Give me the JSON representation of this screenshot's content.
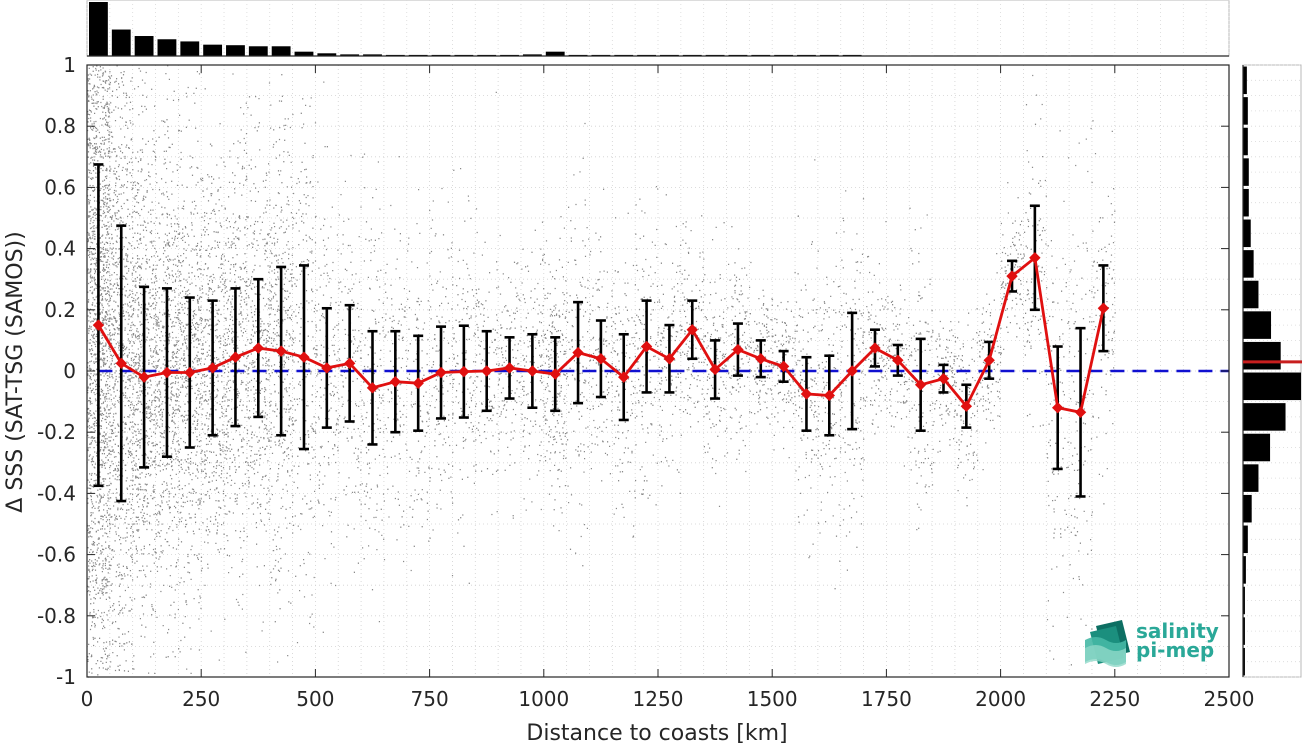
{
  "chart_data": {
    "type": "scatter",
    "xlabel": "Distance to coasts [km]",
    "ylabel": "Δ SSS (SAT-TSG (SAMOS))",
    "xlim": [
      0,
      2500
    ],
    "ylim": [
      -1,
      1
    ],
    "xticks": [
      "0",
      "250",
      "500",
      "750",
      "1000",
      "1250",
      "1500",
      "1750",
      "2000",
      "2250",
      "2500"
    ],
    "yticks": [
      "-1",
      "-0.8",
      "-0.6",
      "-0.4",
      "-0.2",
      "0",
      "0.2",
      "0.4",
      "0.6",
      "0.8",
      "1"
    ],
    "grid": "dotted",
    "reference_line": {
      "y": 0,
      "color": "#1010d0",
      "style": "dashed"
    },
    "series": [
      {
        "color": "#e01010",
        "marker": "diamond",
        "x": [
          25,
          75,
          125,
          175,
          225,
          275,
          325,
          375,
          425,
          475,
          525,
          575,
          625,
          675,
          725,
          775,
          825,
          875,
          925,
          975,
          1025,
          1075,
          1125,
          1175,
          1225,
          1275,
          1325,
          1375,
          1425,
          1475,
          1525,
          1575,
          1625,
          1675,
          1725,
          1775,
          1825,
          1875,
          1925,
          1975,
          2025,
          2075,
          2125,
          2175,
          2225
        ],
        "mean": [
          0.15,
          0.025,
          -0.02,
          -0.005,
          -0.005,
          0.01,
          0.045,
          0.075,
          0.065,
          0.045,
          0.01,
          0.025,
          -0.055,
          -0.035,
          -0.04,
          -0.005,
          -0.002,
          0.0,
          0.01,
          0.0,
          -0.01,
          0.06,
          0.04,
          -0.02,
          0.08,
          0.04,
          0.135,
          0.005,
          0.07,
          0.04,
          0.015,
          -0.075,
          -0.08,
          0.0,
          0.075,
          0.035,
          -0.045,
          -0.025,
          -0.115,
          0.035,
          0.31,
          0.37,
          -0.12,
          -0.135,
          0.205
        ],
        "std": [
          0.525,
          0.45,
          0.295,
          0.275,
          0.245,
          0.22,
          0.225,
          0.225,
          0.275,
          0.3,
          0.195,
          0.19,
          0.185,
          0.165,
          0.155,
          0.15,
          0.15,
          0.13,
          0.1,
          0.12,
          0.12,
          0.165,
          0.125,
          0.14,
          0.15,
          0.11,
          0.095,
          0.095,
          0.085,
          0.06,
          0.05,
          0.12,
          0.13,
          0.19,
          0.06,
          0.05,
          0.15,
          0.045,
          0.07,
          0.06,
          0.05,
          0.17,
          0.2,
          0.275,
          0.14
        ]
      }
    ],
    "top_histogram": {
      "bin_edges_start": 0,
      "bin_width": 50,
      "counts": [
        100,
        49,
        37,
        31,
        27,
        21,
        20,
        18,
        18,
        8,
        5,
        3,
        3,
        2,
        2,
        2,
        2,
        2,
        2,
        3,
        8,
        2,
        2,
        2,
        2,
        2,
        2,
        2,
        2,
        2,
        2,
        2,
        2,
        2,
        1,
        1,
        1,
        1,
        1,
        1,
        1,
        1,
        1,
        1,
        1
      ]
    },
    "right_histogram": {
      "bin_centers": [
        0.95,
        0.85,
        0.75,
        0.65,
        0.55,
        0.45,
        0.35,
        0.25,
        0.15,
        0.05,
        -0.05,
        -0.15,
        -0.25,
        -0.35,
        -0.45,
        -0.55,
        -0.65,
        -0.75,
        -0.85,
        -0.95
      ],
      "counts": [
        4,
        5,
        5,
        6,
        6,
        8,
        11,
        16,
        29,
        39,
        60,
        44,
        28,
        16,
        9,
        5,
        3,
        2,
        2,
        2
      ],
      "mean_marker": {
        "y": 0.03,
        "color": "#c81e1e"
      }
    }
  },
  "logo": {
    "line1": "salinity",
    "line2": "pi-mep"
  }
}
